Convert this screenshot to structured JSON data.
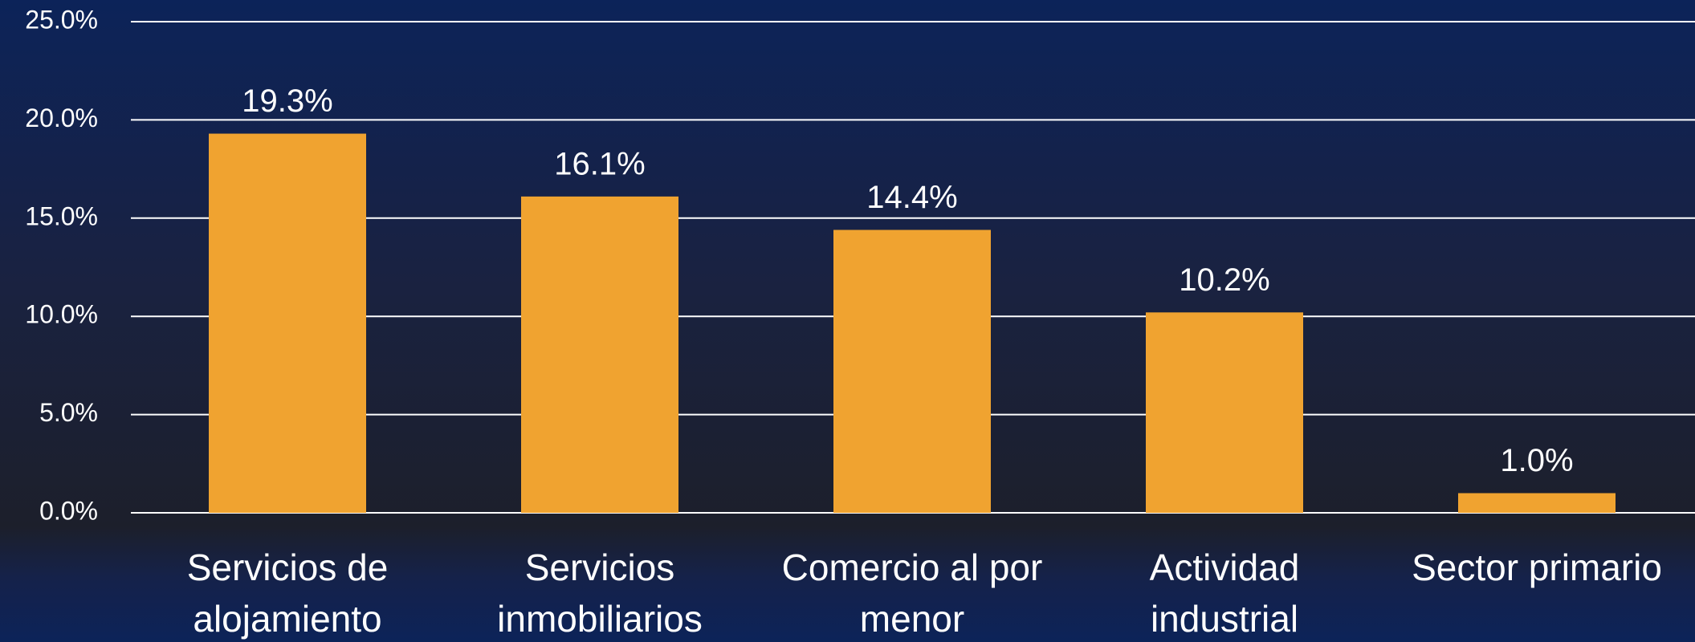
{
  "chart_data": {
    "type": "bar",
    "categories": [
      "Servicios de alojamiento",
      "Servicios inmobiliarios",
      "Comercio al por menor",
      "Actividad industrial",
      "Sector primario"
    ],
    "values": [
      19.3,
      16.1,
      14.4,
      10.2,
      1.0
    ],
    "value_labels": [
      "19.3%",
      "16.1%",
      "14.4%",
      "10.2%",
      "1.0%"
    ],
    "color": "#f0a330",
    "ylim": [
      0,
      25
    ],
    "yticks": [
      {
        "value": 0,
        "label": "0.0%"
      },
      {
        "value": 5,
        "label": "5.0%"
      },
      {
        "value": 10,
        "label": "10.0%"
      },
      {
        "value": 15,
        "label": "15.0%"
      },
      {
        "value": 20,
        "label": "20.0%"
      },
      {
        "value": 25,
        "label": "25.0%"
      }
    ],
    "grid": true
  }
}
